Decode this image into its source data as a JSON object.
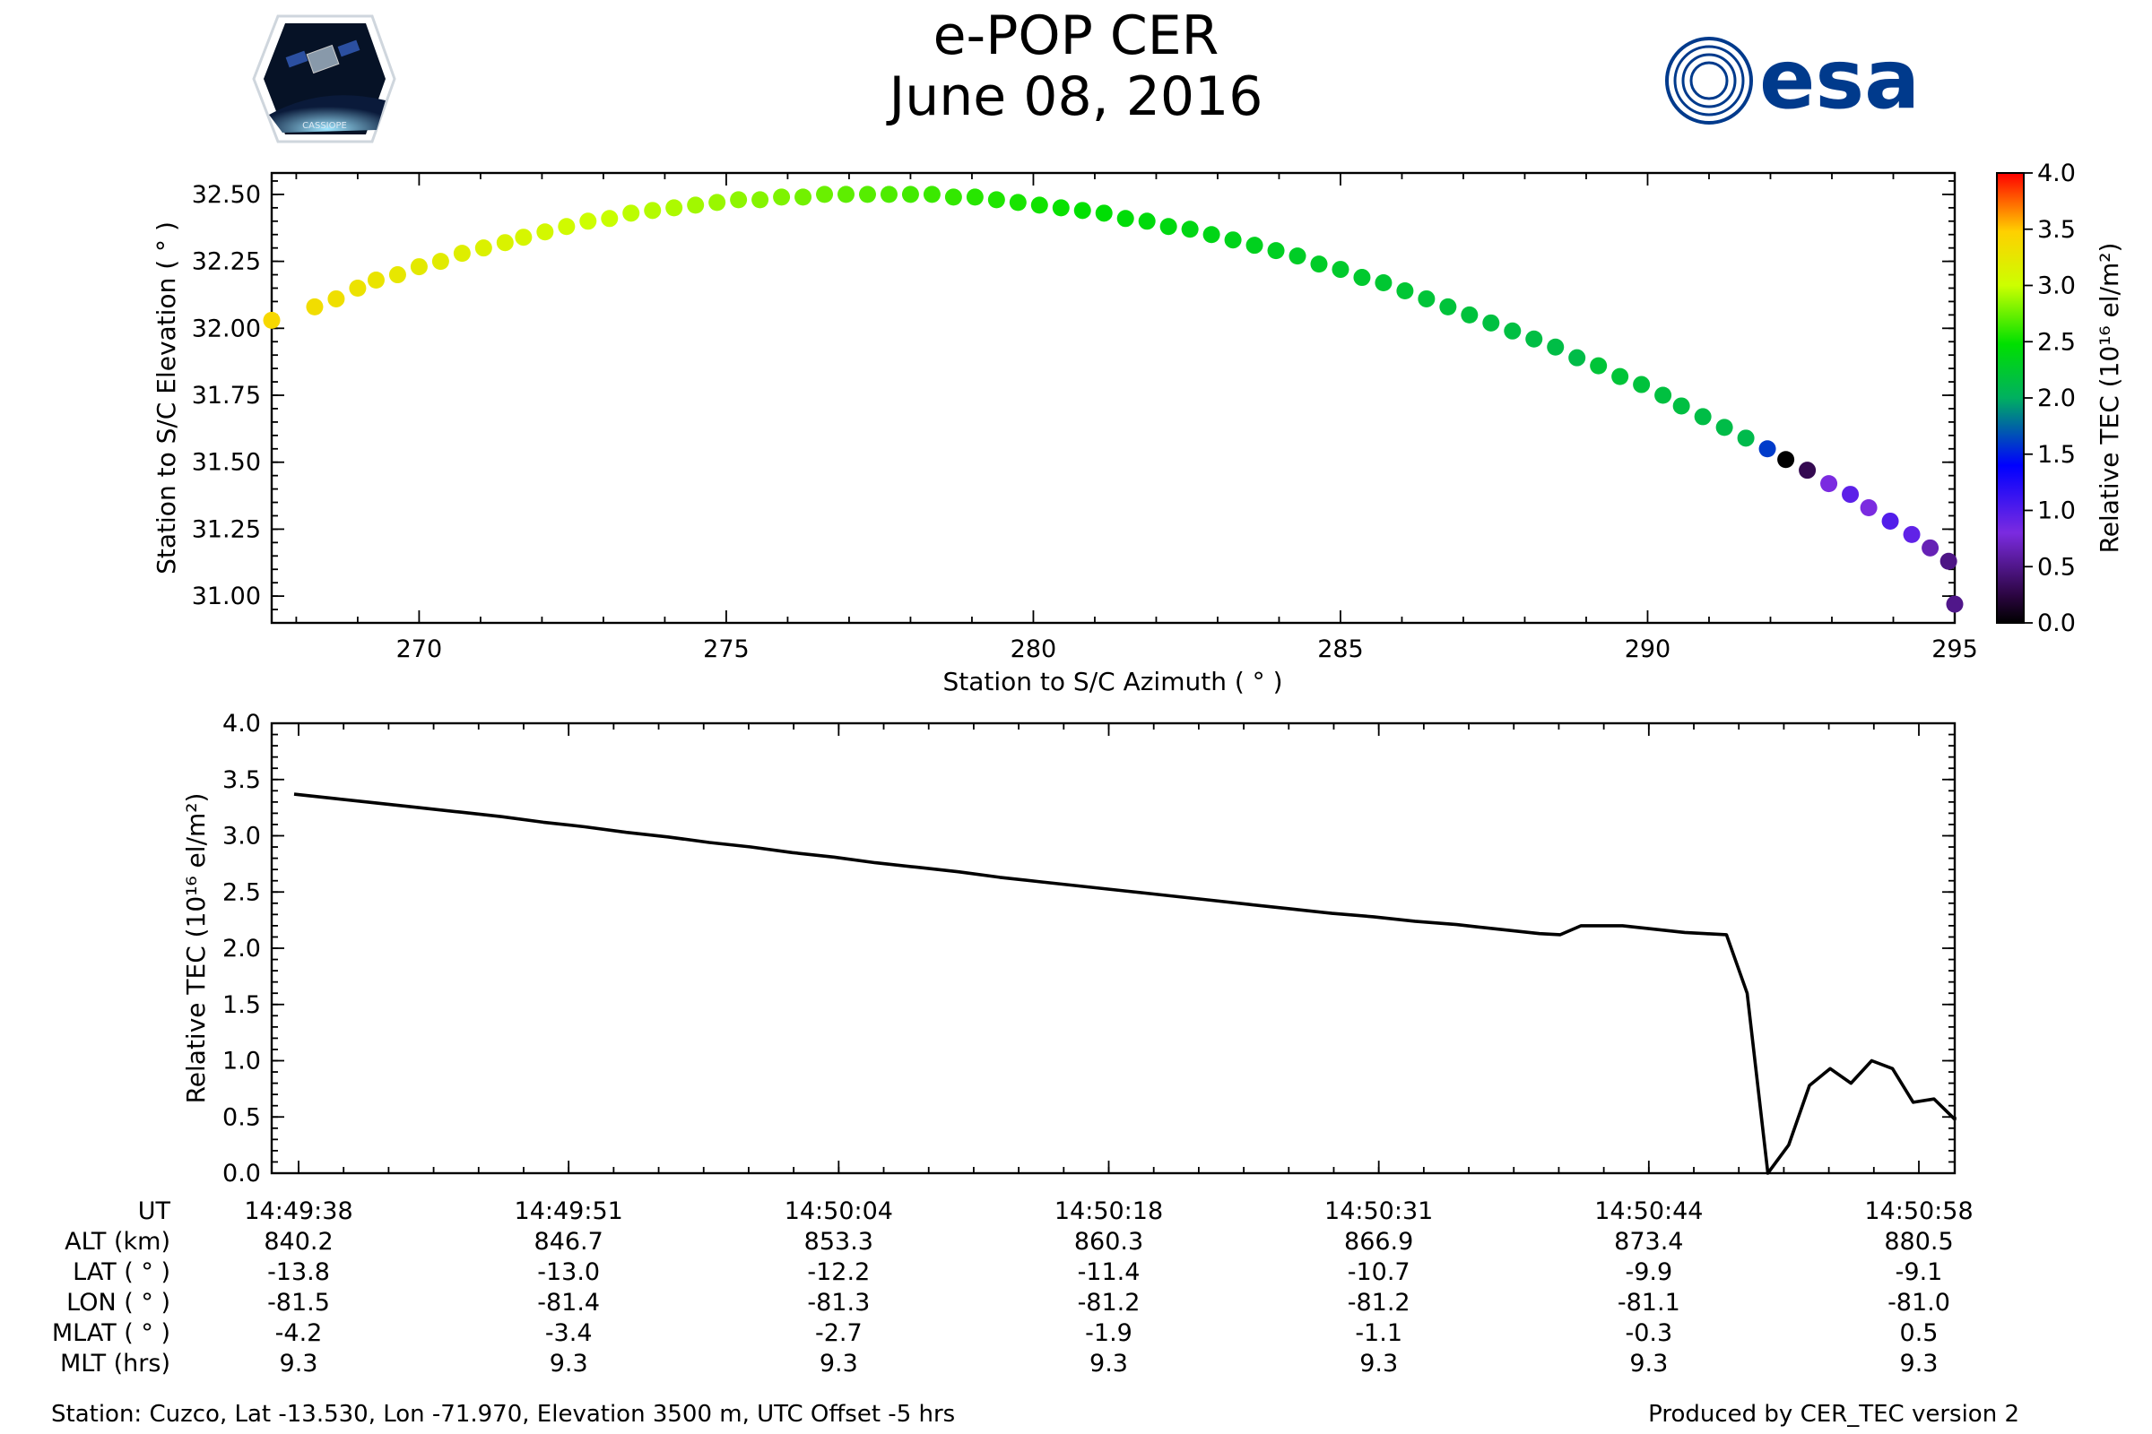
{
  "header": {
    "title": "e-POP CER",
    "date": "June 08, 2016",
    "logo_left_text": "CASSIOPE",
    "logo_right_text": "esa"
  },
  "colors": {
    "esa_blue": "#003a8c",
    "line": "#000000"
  },
  "chart_data": [
    {
      "id": "elevation-vs-azimuth",
      "type": "scatter",
      "xlabel": "Station to S/C Azimuth ( ° )",
      "ylabel": "Station to S/C Elevation ( ° )",
      "xlim": [
        267.6,
        295.0
      ],
      "ylim": [
        30.9,
        32.58
      ],
      "xticks": [
        270,
        275,
        280,
        285,
        290,
        295
      ],
      "yticks": [
        31.0,
        31.25,
        31.5,
        31.75,
        32.0,
        32.25,
        32.5
      ],
      "ytick_labels": [
        "31.00",
        "31.25",
        "31.50",
        "31.75",
        "32.00",
        "32.25",
        "32.50"
      ],
      "color_scale_max": 4.0,
      "elevation_peak": {
        "azimuth": 277.5,
        "elevation": 32.5
      },
      "points": [
        [
          267.6,
          32.03,
          3.4
        ],
        [
          268.3,
          32.08,
          3.35
        ],
        [
          268.65,
          32.11,
          3.33
        ],
        [
          269.0,
          32.15,
          3.3
        ],
        [
          269.3,
          32.18,
          3.28
        ],
        [
          269.65,
          32.2,
          3.25
        ],
        [
          270.0,
          32.23,
          3.22
        ],
        [
          270.35,
          32.25,
          3.2
        ],
        [
          270.7,
          32.28,
          3.17
        ],
        [
          271.05,
          32.3,
          3.14
        ],
        [
          271.4,
          32.32,
          3.12
        ],
        [
          271.7,
          32.34,
          3.09
        ],
        [
          272.05,
          32.36,
          3.07
        ],
        [
          272.4,
          32.38,
          3.04
        ],
        [
          272.75,
          32.4,
          3.01
        ],
        [
          273.1,
          32.41,
          2.99
        ],
        [
          273.45,
          32.43,
          2.96
        ],
        [
          273.8,
          32.44,
          2.94
        ],
        [
          274.15,
          32.45,
          2.92
        ],
        [
          274.5,
          32.46,
          2.89
        ],
        [
          274.85,
          32.47,
          2.87
        ],
        [
          275.2,
          32.48,
          2.84
        ],
        [
          275.55,
          32.48,
          2.82
        ],
        [
          275.9,
          32.49,
          2.8
        ],
        [
          276.25,
          32.49,
          2.77
        ],
        [
          276.6,
          32.5,
          2.75
        ],
        [
          276.95,
          32.5,
          2.72
        ],
        [
          277.3,
          32.5,
          2.7
        ],
        [
          277.65,
          32.5,
          2.68
        ],
        [
          278.0,
          32.5,
          2.65
        ],
        [
          278.35,
          32.5,
          2.63
        ],
        [
          278.7,
          32.49,
          2.61
        ],
        [
          279.05,
          32.49,
          2.58
        ],
        [
          279.4,
          32.48,
          2.56
        ],
        [
          279.75,
          32.47,
          2.54
        ],
        [
          280.1,
          32.46,
          2.52
        ],
        [
          280.45,
          32.45,
          2.5
        ],
        [
          280.8,
          32.44,
          2.48
        ],
        [
          281.15,
          32.43,
          2.46
        ],
        [
          281.5,
          32.41,
          2.44
        ],
        [
          281.85,
          32.4,
          2.42
        ],
        [
          282.2,
          32.38,
          2.4
        ],
        [
          282.55,
          32.37,
          2.38
        ],
        [
          282.9,
          32.35,
          2.37
        ],
        [
          283.25,
          32.33,
          2.35
        ],
        [
          283.6,
          32.31,
          2.33
        ],
        [
          283.95,
          32.29,
          2.31
        ],
        [
          284.3,
          32.27,
          2.29
        ],
        [
          284.65,
          32.24,
          2.28
        ],
        [
          285.0,
          32.22,
          2.26
        ],
        [
          285.35,
          32.19,
          2.25
        ],
        [
          285.7,
          32.17,
          2.23
        ],
        [
          286.05,
          32.14,
          2.22
        ],
        [
          286.4,
          32.11,
          2.2
        ],
        [
          286.75,
          32.08,
          2.19
        ],
        [
          287.1,
          32.05,
          2.18
        ],
        [
          287.45,
          32.02,
          2.16
        ],
        [
          287.8,
          31.99,
          2.15
        ],
        [
          288.15,
          31.96,
          2.14
        ],
        [
          288.5,
          31.93,
          2.13
        ],
        [
          288.85,
          31.89,
          2.12
        ],
        [
          289.2,
          31.86,
          2.2
        ],
        [
          289.55,
          31.82,
          2.2
        ],
        [
          289.9,
          31.79,
          2.18
        ],
        [
          290.25,
          31.75,
          2.16
        ],
        [
          290.55,
          31.71,
          2.15
        ],
        [
          290.9,
          31.67,
          2.13
        ],
        [
          291.25,
          31.63,
          2.12
        ],
        [
          291.6,
          31.59,
          2.1
        ],
        [
          291.95,
          31.55,
          1.6
        ],
        [
          292.25,
          31.51,
          0.0
        ],
        [
          292.6,
          31.47,
          0.3
        ],
        [
          292.95,
          31.42,
          0.8
        ],
        [
          293.3,
          31.38,
          0.95
        ],
        [
          293.6,
          31.33,
          0.8
        ],
        [
          293.95,
          31.28,
          1.0
        ],
        [
          294.3,
          31.23,
          0.93
        ],
        [
          294.6,
          31.18,
          0.65
        ],
        [
          294.9,
          31.13,
          0.48
        ],
        [
          295.0,
          30.97,
          0.5
        ]
      ]
    },
    {
      "id": "relative-tec-timeseries",
      "type": "line",
      "ylabel": "Relative TEC (10¹⁶ el/m²)",
      "ylim": [
        0.0,
        4.0
      ],
      "yticks": [
        "0.0",
        "0.5",
        "1.0",
        "1.5",
        "2.0",
        "2.5",
        "3.0",
        "3.5",
        "4.0"
      ],
      "x_seconds_range": [
        0,
        80
      ],
      "series": [
        {
          "name": "Relative TEC",
          "x": [
            0,
            2,
            4,
            6,
            8,
            10,
            12,
            14,
            16,
            18,
            20,
            22,
            24,
            26,
            28,
            30,
            32,
            34,
            36,
            38,
            40,
            42,
            44,
            46,
            48,
            50,
            52,
            54,
            56,
            57,
            58,
            59,
            60,
            61,
            62,
            64,
            65,
            66,
            67,
            68,
            69,
            70,
            71,
            72,
            73,
            74,
            75,
            76,
            77,
            78,
            79,
            80
          ],
          "y": [
            3.37,
            3.33,
            3.29,
            3.25,
            3.21,
            3.17,
            3.12,
            3.08,
            3.03,
            2.99,
            2.94,
            2.9,
            2.85,
            2.81,
            2.76,
            2.72,
            2.68,
            2.63,
            2.59,
            2.55,
            2.51,
            2.47,
            2.43,
            2.39,
            2.35,
            2.31,
            2.28,
            2.24,
            2.21,
            2.19,
            2.17,
            2.15,
            2.13,
            2.12,
            2.2,
            2.2,
            2.18,
            2.16,
            2.14,
            2.13,
            2.12,
            1.6,
            0.0,
            0.25,
            0.78,
            0.93,
            0.8,
            1.0,
            0.93,
            0.63,
            0.66,
            0.48
          ]
        }
      ],
      "extra_end_value": 0.5,
      "colorbar": {
        "label": "Relative TEC (10¹⁶ el/m²)",
        "min": 0.0,
        "max": 4.0,
        "ticks": [
          "0.0",
          "0.5",
          "1.0",
          "1.5",
          "2.0",
          "2.5",
          "3.0",
          "3.5",
          "4.0"
        ]
      }
    }
  ],
  "table": {
    "row_labels": [
      "UT",
      "ALT (km)",
      "LAT ( ° )",
      "LON ( ° )",
      "MLAT ( ° )",
      "MLT (hrs)"
    ],
    "columns": [
      {
        "UT": "14:49:38",
        "ALT": "840.2",
        "LAT": "-13.8",
        "LON": "-81.5",
        "MLAT": "-4.2",
        "MLT": "9.3"
      },
      {
        "UT": "14:49:51",
        "ALT": "846.7",
        "LAT": "-13.0",
        "LON": "-81.4",
        "MLAT": "-3.4",
        "MLT": "9.3"
      },
      {
        "UT": "14:50:04",
        "ALT": "853.3",
        "LAT": "-12.2",
        "LON": "-81.3",
        "MLAT": "-2.7",
        "MLT": "9.3"
      },
      {
        "UT": "14:50:18",
        "ALT": "860.3",
        "LAT": "-11.4",
        "LON": "-81.2",
        "MLAT": "-1.9",
        "MLT": "9.3"
      },
      {
        "UT": "14:50:31",
        "ALT": "866.9",
        "LAT": "-10.7",
        "LON": "-81.2",
        "MLAT": "-1.1",
        "MLT": "9.3"
      },
      {
        "UT": "14:50:44",
        "ALT": "873.4",
        "LAT": "-9.9",
        "LON": "-81.1",
        "MLAT": "-0.3",
        "MLT": "9.3"
      },
      {
        "UT": "14:50:58",
        "ALT": "880.5",
        "LAT": "-9.1",
        "LON": "-81.0",
        "MLAT": "0.5",
        "MLT": "9.3"
      }
    ]
  },
  "footer": {
    "station": "Station: Cuzco, Lat -13.530, Lon -71.970, Elevation 3500 m, UTC Offset -5 hrs",
    "produced": "Produced by CER_TEC version 2"
  }
}
